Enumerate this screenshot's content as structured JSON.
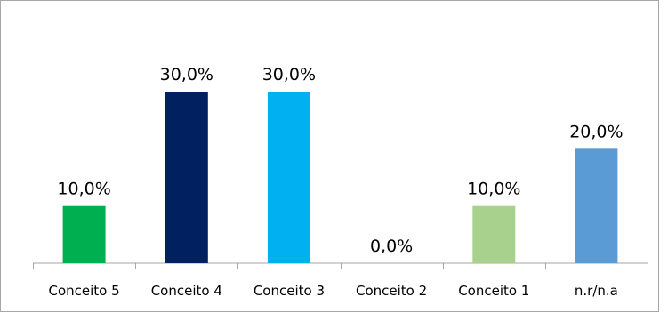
{
  "chart_data": {
    "type": "bar",
    "title": "",
    "xlabel": "",
    "ylabel": "",
    "ylim": [
      0,
      0.35
    ],
    "grid": false,
    "legend": "none",
    "categories": [
      "Conceito 5",
      "Conceito 4",
      "Conceito 3",
      "Conceito 2",
      "Conceito 1",
      "n.r/n.a"
    ],
    "values": [
      0.1,
      0.3,
      0.3,
      0.0,
      0.1,
      0.2
    ],
    "data_labels": [
      "10,0%",
      "30,0%",
      "30,0%",
      "0,0%",
      "10,0%",
      "20,0%"
    ],
    "colors": [
      "#00B050",
      "#002060",
      "#00B0F0",
      "#FFFFFF",
      "#A9D18E",
      "#5B9BD5"
    ]
  }
}
